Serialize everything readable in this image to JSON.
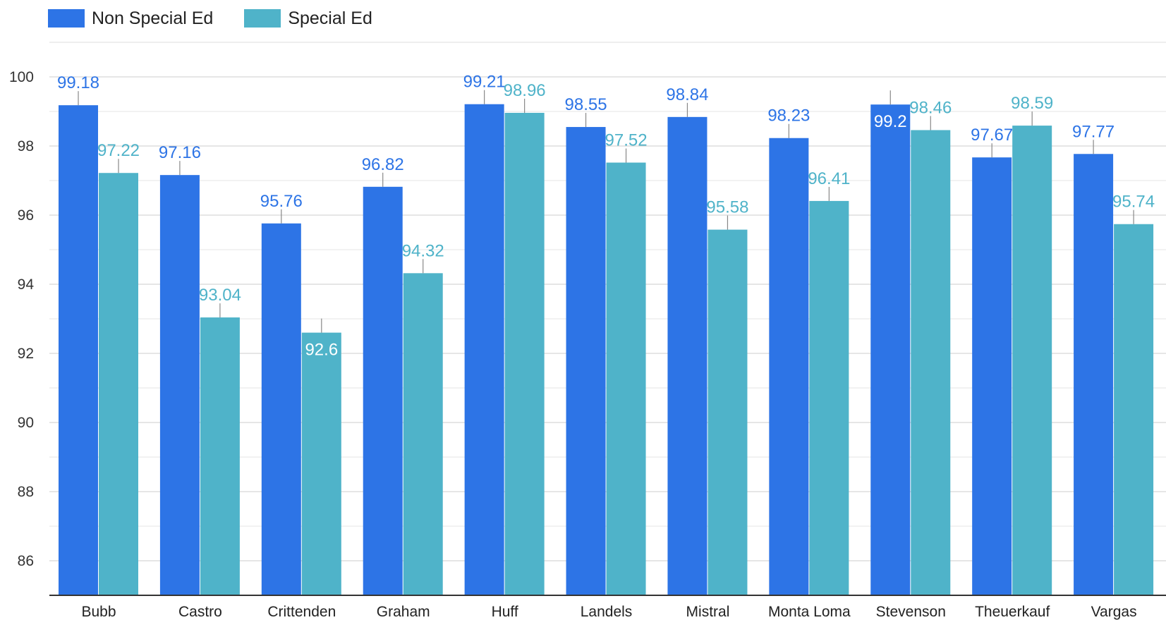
{
  "chart_data": {
    "type": "bar",
    "categories": [
      "Bubb",
      "Castro",
      "Crittenden",
      "Graham",
      "Huff",
      "Landels",
      "Mistral",
      "Monta Loma",
      "Stevenson",
      "Theuerkauf",
      "Vargas"
    ],
    "series": [
      {
        "name": "Non Special Ed",
        "color": "#2d74e6",
        "values": [
          99.18,
          97.16,
          95.76,
          96.82,
          99.21,
          98.55,
          98.84,
          98.23,
          99.2,
          97.67,
          97.77
        ]
      },
      {
        "name": "Special Ed",
        "color": "#4fb3c9",
        "values": [
          97.22,
          93.04,
          92.6,
          94.32,
          98.96,
          97.52,
          95.58,
          96.41,
          98.46,
          98.59,
          95.74
        ]
      }
    ],
    "value_labels": [
      [
        "99.18",
        "97.16",
        "95.76",
        "96.82",
        "99.21",
        "98.55",
        "98.84",
        "98.23",
        "99.2",
        "97.67",
        "97.77"
      ],
      [
        "97.22",
        "93.04",
        "92.6",
        "94.32",
        "98.96",
        "97.52",
        "95.58",
        "96.41",
        "98.46",
        "98.59",
        "95.74"
      ]
    ],
    "inside_labels": [
      [
        false,
        false,
        false,
        false,
        false,
        false,
        false,
        false,
        true,
        false,
        false
      ],
      [
        false,
        false,
        true,
        false,
        false,
        false,
        false,
        false,
        false,
        false,
        false
      ]
    ],
    "yticks": [
      "86",
      "88",
      "90",
      "92",
      "94",
      "96",
      "98",
      "100"
    ],
    "ylim": [
      85,
      100.5
    ],
    "grid": true,
    "error_bars": true,
    "legend_position": "top-left"
  }
}
